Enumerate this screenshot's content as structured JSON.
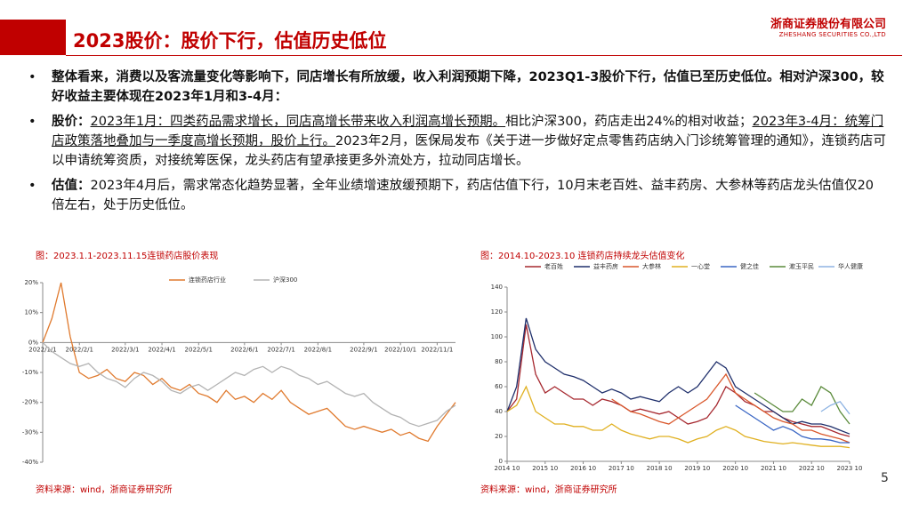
{
  "header": {
    "title": "2023股价：股价下行，估值历史低位",
    "company": "浙商证券股份有限公司",
    "company_en": "ZHESHANG SECURITIES CO.,LTD"
  },
  "bullets": [
    {
      "text": "整体看来，消费以及客流量变化等影响下，同店增长有所放缓，收入利润预期下降，2023Q1-3股价下行，估值已至历史低位。相对沪深300，较好收益主要体现在2023年1月和3-4月："
    },
    {
      "label": "股价：",
      "parts": [
        "2023年1月：四类药品需求增长，同店高增长带来收入利润高增长预期。",
        "相比沪深300，药店走出24%的相对收益；",
        "2023年3-4月：统筹门店政策落地叠加与一季度高增长预期，股价上行。",
        "2023年2月，医保局发布《关于进一步做好定点零售药店纳入门诊统筹管理的通知》，连锁药店可以申请统筹资质，对接统筹医保，龙头药店有望承接更多外流处方，拉动同店增长。"
      ]
    },
    {
      "label": "估值：",
      "text": "2023年4月后，需求常态化趋势显著，全年业绩增速放缓预期下，药店估值下行，10月末老百姓、益丰药房、大参林等药店龙头估值仅20倍左右，处于历史低位。"
    }
  ],
  "chart_data": [
    {
      "type": "line",
      "title": "图：2023.1.1-2023.11.15连锁药店股价表现",
      "x": [
        "2022/1/1",
        null,
        null,
        null,
        "2022/2/1",
        null,
        null,
        null,
        null,
        "2022/3/1",
        null,
        null,
        null,
        "2022/4/1",
        null,
        null,
        null,
        "2022/5/1",
        null,
        null,
        null,
        null,
        "2022/6/1",
        null,
        null,
        null,
        "2022/7/1",
        null,
        null,
        null,
        "2022/8/1",
        null,
        null,
        null,
        null,
        "2022/9/1",
        null,
        null,
        null,
        "2022/10/1",
        null,
        null,
        null,
        "2022/11/1",
        null,
        null
      ],
      "series": [
        {
          "name": "连锁药店行业",
          "color": "#e07a2e",
          "values": [
            0,
            8,
            20,
            2,
            -10,
            -12,
            -11,
            -9,
            -12,
            -13,
            -10,
            -11,
            -14,
            -12,
            -15,
            -16,
            -14,
            -17,
            -18,
            -20,
            -16,
            -19,
            -18,
            -20,
            -17,
            -19,
            -16,
            -20,
            -22,
            -24,
            -23,
            -22,
            -25,
            -28,
            -29,
            -28,
            -29,
            -30,
            -29,
            -31,
            -30,
            -32,
            -33,
            -28,
            -24,
            -20
          ]
        },
        {
          "name": "沪深300",
          "color": "#b3b3b3",
          "values": [
            0,
            -3,
            -5,
            -7,
            -8,
            -7,
            -10,
            -12,
            -13,
            -15,
            -12,
            -10,
            -11,
            -13,
            -16,
            -17,
            -15,
            -14,
            -16,
            -14,
            -12,
            -10,
            -11,
            -9,
            -8,
            -10,
            -8,
            -9,
            -11,
            -12,
            -14,
            -13,
            -15,
            -17,
            -18,
            -17,
            -20,
            -22,
            -24,
            -25,
            -27,
            -28,
            -27,
            -26,
            -23,
            -21
          ]
        }
      ],
      "ylim": [
        -40,
        20
      ],
      "yticks": [
        {
          "value": -40,
          "label": "-40%"
        },
        {
          "value": -30,
          "label": "-30%"
        },
        {
          "value": -20,
          "label": "-20%"
        },
        {
          "value": -10,
          "label": "-10%"
        },
        {
          "value": 0,
          "label": "0%"
        },
        {
          "value": 10,
          "label": "10%"
        },
        {
          "value": 20,
          "label": "20%"
        }
      ],
      "grid": false,
      "legend": "top"
    },
    {
      "type": "line",
      "title": "图：2014.10-2023.10 连锁药店持续龙头估值变化",
      "x": [
        "2014 10",
        null,
        null,
        null,
        "2015 10",
        null,
        null,
        null,
        "2016 10",
        null,
        null,
        null,
        "2017 10",
        null,
        null,
        null,
        "2018 10",
        null,
        null,
        null,
        "2019 10",
        null,
        null,
        null,
        "2020 10",
        null,
        null,
        null,
        "2021 10",
        null,
        null,
        null,
        "2022 10",
        null,
        null,
        null,
        "2023 10"
      ],
      "series": [
        {
          "name": "老百姓",
          "color": "#a6282f",
          "values": [
            40,
            50,
            110,
            70,
            55,
            60,
            55,
            50,
            50,
            45,
            50,
            48,
            45,
            40,
            42,
            40,
            38,
            40,
            35,
            30,
            32,
            35,
            45,
            60,
            55,
            48,
            45,
            40,
            40,
            35,
            32,
            30,
            28,
            28,
            25,
            22,
            20
          ]
        },
        {
          "name": "益丰药房",
          "color": "#1f2f6b",
          "values": [
            40,
            60,
            115,
            90,
            80,
            75,
            70,
            68,
            65,
            60,
            55,
            58,
            55,
            50,
            52,
            50,
            48,
            55,
            60,
            55,
            60,
            70,
            80,
            75,
            60,
            55,
            50,
            45,
            40,
            35,
            30,
            32,
            30,
            30,
            28,
            25,
            22
          ]
        },
        {
          "name": "大参林",
          "color": "#d9572b",
          "values": [
            null,
            null,
            null,
            null,
            null,
            null,
            null,
            null,
            null,
            null,
            null,
            50,
            45,
            40,
            38,
            35,
            32,
            30,
            35,
            40,
            45,
            50,
            60,
            70,
            55,
            50,
            45,
            40,
            35,
            32,
            30,
            25,
            25,
            22,
            20,
            18,
            15
          ]
        },
        {
          "name": "一心堂",
          "color": "#e0b020",
          "values": [
            40,
            45,
            60,
            40,
            35,
            30,
            30,
            28,
            28,
            25,
            25,
            30,
            25,
            22,
            20,
            18,
            20,
            20,
            18,
            15,
            18,
            20,
            25,
            28,
            25,
            20,
            18,
            16,
            15,
            14,
            15,
            14,
            13,
            12,
            12,
            12,
            11
          ]
        },
        {
          "name": "健之佳",
          "color": "#3a66c4",
          "values": [
            null,
            null,
            null,
            null,
            null,
            null,
            null,
            null,
            null,
            null,
            null,
            null,
            null,
            null,
            null,
            null,
            null,
            null,
            null,
            null,
            null,
            null,
            null,
            null,
            45,
            40,
            35,
            30,
            25,
            28,
            25,
            20,
            18,
            18,
            17,
            15,
            15
          ]
        },
        {
          "name": "漱玉平民",
          "color": "#5a8a3a",
          "values": [
            null,
            null,
            null,
            null,
            null,
            null,
            null,
            null,
            null,
            null,
            null,
            null,
            null,
            null,
            null,
            null,
            null,
            null,
            null,
            null,
            null,
            null,
            null,
            null,
            null,
            null,
            55,
            50,
            45,
            40,
            40,
            50,
            45,
            60,
            55,
            40,
            30
          ]
        },
        {
          "name": "华人健康",
          "color": "#8fb4e3",
          "values": [
            null,
            null,
            null,
            null,
            null,
            null,
            null,
            null,
            null,
            null,
            null,
            null,
            null,
            null,
            null,
            null,
            null,
            null,
            null,
            null,
            null,
            null,
            null,
            null,
            null,
            null,
            null,
            null,
            null,
            null,
            null,
            null,
            null,
            40,
            45,
            48,
            38
          ]
        }
      ],
      "ylim": [
        0,
        140
      ],
      "yticks": [
        0,
        20,
        40,
        60,
        80,
        100,
        120,
        140
      ],
      "grid": false,
      "legend": "top"
    }
  ],
  "sources": [
    "资料来源：wind，浙商证券研究所",
    "资料来源：wind，浙商证券研究所"
  ],
  "page_number": "5"
}
